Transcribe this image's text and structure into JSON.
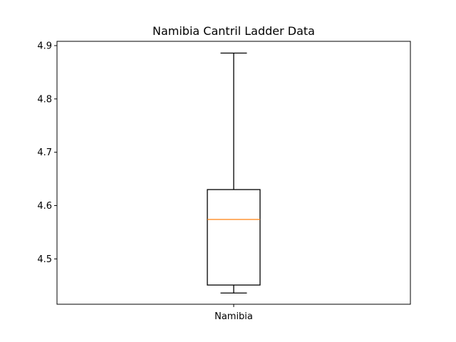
{
  "chart_data": {
    "type": "box",
    "title": "Namibia Cantril Ladder Data",
    "xlabel": "",
    "ylabel": "",
    "categories": [
      "Namibia"
    ],
    "boxes": [
      {
        "category": "Namibia",
        "whisker_low": 4.436,
        "q1": 4.451,
        "median": 4.574,
        "q3": 4.63,
        "whisker_high": 4.886
      }
    ],
    "ylim": [
      4.415,
      4.908
    ],
    "yticks": [
      "4.5",
      "4.6",
      "4.7",
      "4.8",
      "4.9"
    ],
    "grid": false,
    "colors": {
      "box": "#000000",
      "median": "#ff7f0e",
      "axes": "#000000"
    }
  }
}
